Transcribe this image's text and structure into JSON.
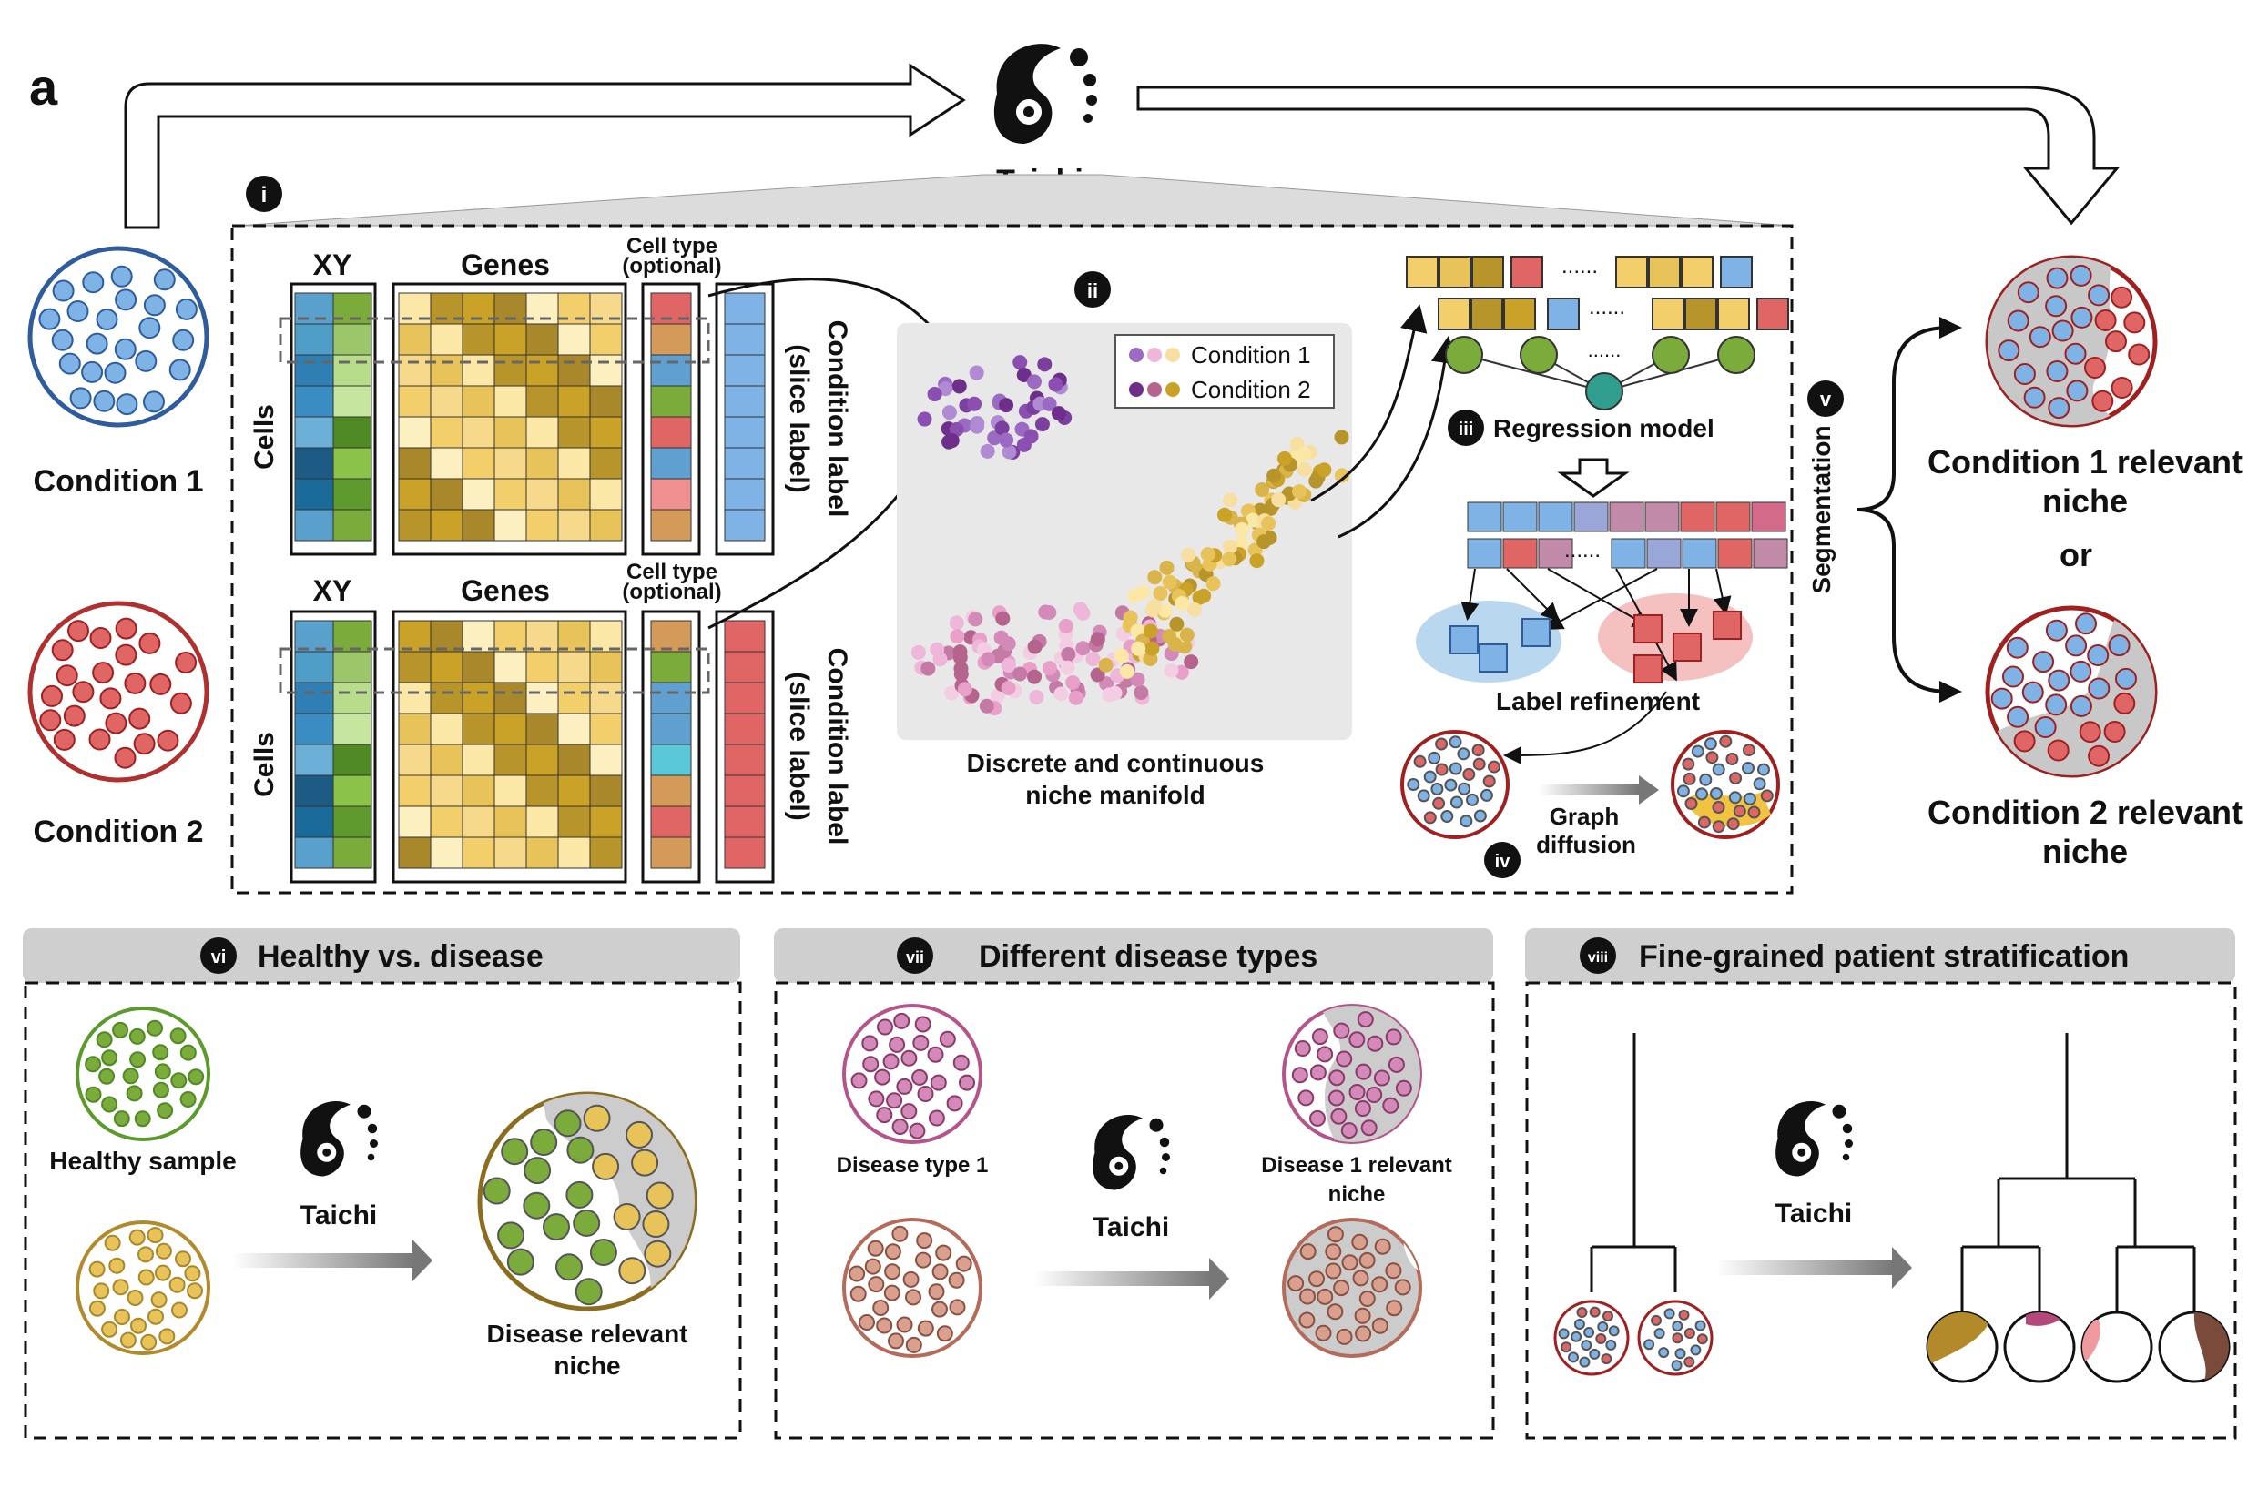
{
  "panel_letter": "a",
  "logo_name": "Taichi",
  "inputs": {
    "condition1": "Condition 1",
    "condition2": "Condition 2"
  },
  "colors": {
    "blue": "#7fb2e5",
    "red": "#e06666",
    "green": "#7aab3b",
    "gold": "#c9a227",
    "purple": "#7b3f9e",
    "pink": "#e8a0c8",
    "gray_bg": "#e8e8e8"
  },
  "matrix": {
    "xy_label": "XY",
    "genes_label": "Genes",
    "cell_type_label": "Cell type\n(optional)",
    "cell_type_line1": "Cell type",
    "cell_type_line2": "(optional)",
    "cells_label": "Cells",
    "condition_label_line1": "Condition label",
    "condition_label_line2": "(slice label)"
  },
  "steps": {
    "i": "i",
    "ii": "ii",
    "iii": "iii",
    "iv": "iv",
    "v": "v",
    "vi": "vi",
    "vii": "vii",
    "viii": "viii"
  },
  "manifold": {
    "legend": [
      "Condition 1",
      "Condition 2"
    ],
    "caption_line1": "Discrete and continuous",
    "caption_line2": "niche manifold"
  },
  "regression": {
    "title": "Regression model",
    "ellipsis": "......"
  },
  "refinement": {
    "label": "Label refinement",
    "graph_line1": "Graph",
    "graph_line2": "diffusion"
  },
  "segmentation": {
    "label": "Segmentation",
    "out1_line1": "Condition 1 relevant",
    "out1_line2": "niche",
    "or": "or",
    "out2_line1": "Condition 2 relevant",
    "out2_line2": "niche"
  },
  "app_vi": {
    "title": "Healthy vs. disease",
    "healthy": "Healthy sample",
    "result_line1": "Disease relevant",
    "result_line2": "niche"
  },
  "app_vii": {
    "title": "Different disease types",
    "type1": "Disease type 1",
    "result_line1": "Disease 1 relevant",
    "result_line2": "niche"
  },
  "app_viii": {
    "title": "Fine-grained patient stratification"
  }
}
